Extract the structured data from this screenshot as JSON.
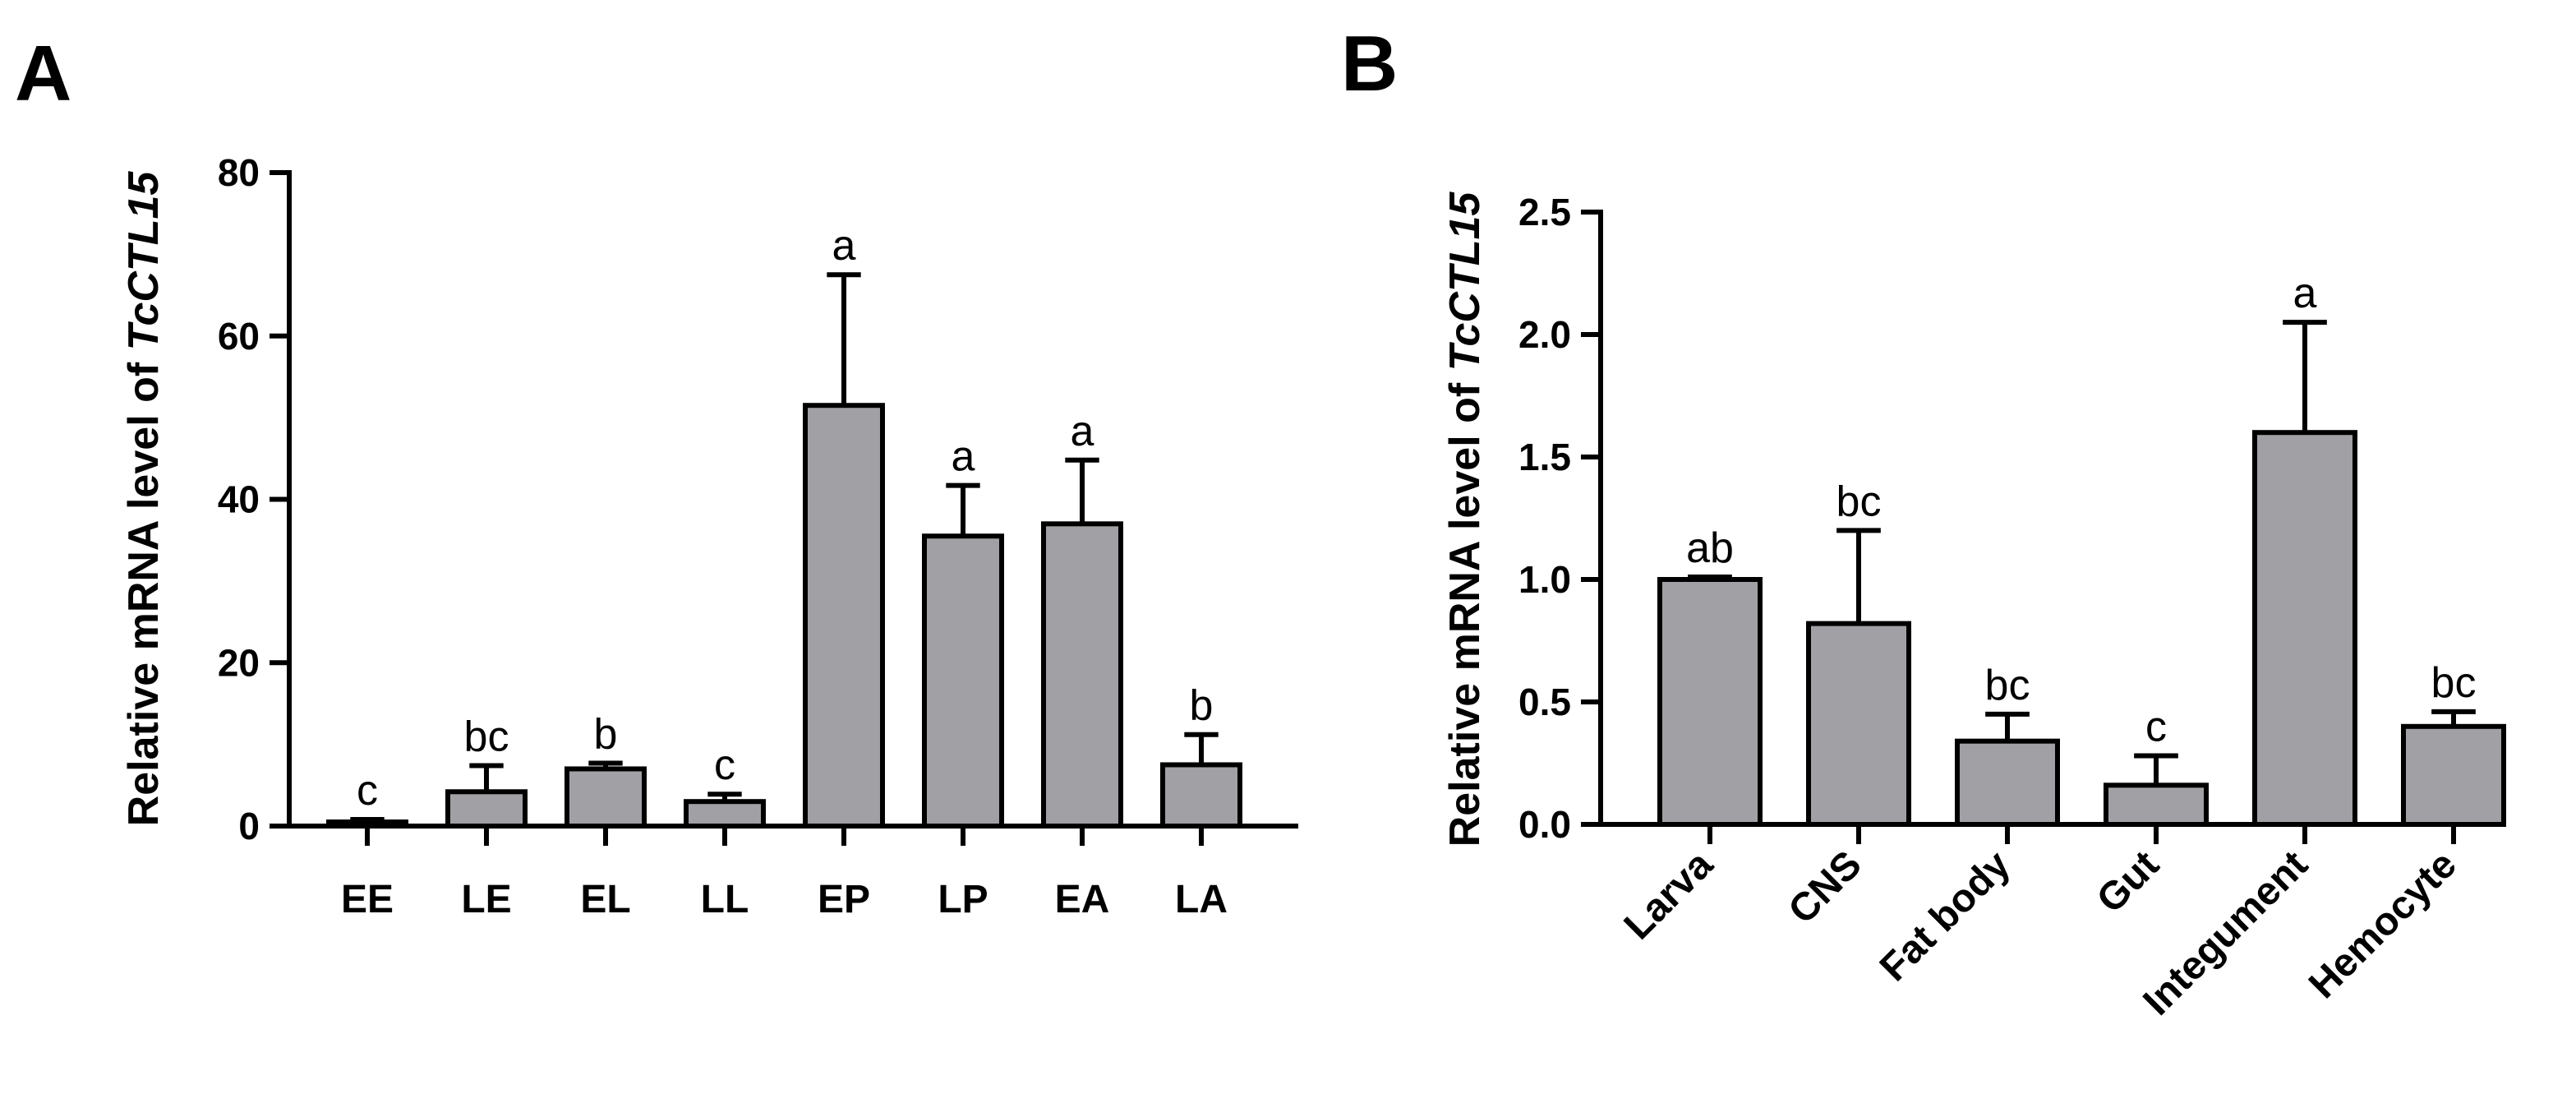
{
  "chart_data": [
    {
      "panel": "A",
      "type": "bar",
      "ylabel_prefix": "Relative mRNA level of ",
      "ylabel_gene": "TcCTL15",
      "xlabel": "",
      "ylim": [
        0,
        80
      ],
      "yticks": [
        "0",
        "20",
        "40",
        "60",
        "80"
      ],
      "ytick_values": [
        0,
        20,
        40,
        60,
        80
      ],
      "categories": [
        "EE",
        "LE",
        "EL",
        "LL",
        "EP",
        "LP",
        "EA",
        "LA"
      ],
      "values": [
        0.5,
        4.2,
        7.0,
        3.0,
        51.5,
        35.5,
        37.0,
        7.5
      ],
      "errors": [
        0.3,
        3.2,
        0.7,
        0.9,
        16.0,
        6.2,
        7.8,
        3.7
      ],
      "significance": [
        "c",
        "bc",
        "b",
        "c",
        "a",
        "a",
        "a",
        "b"
      ]
    },
    {
      "panel": "B",
      "type": "bar",
      "ylabel_prefix": "Relative mRNA level of ",
      "ylabel_gene": "TcCTL15",
      "xlabel": "",
      "ylim": [
        0,
        2.5
      ],
      "yticks": [
        "0.0",
        "0.5",
        "1.0",
        "1.5",
        "2.0",
        "2.5"
      ],
      "ytick_values": [
        0,
        0.5,
        1.0,
        1.5,
        2.0,
        2.5
      ],
      "categories": [
        "Larva",
        "CNS",
        "Fat body",
        "Gut",
        "Integument",
        "Hemocyte"
      ],
      "values": [
        1.0,
        0.82,
        0.34,
        0.16,
        1.6,
        0.4
      ],
      "errors": [
        0.01,
        0.38,
        0.11,
        0.12,
        0.45,
        0.06
      ],
      "significance": [
        "ab",
        "bc",
        "bc",
        "c",
        "a",
        "bc"
      ]
    }
  ]
}
